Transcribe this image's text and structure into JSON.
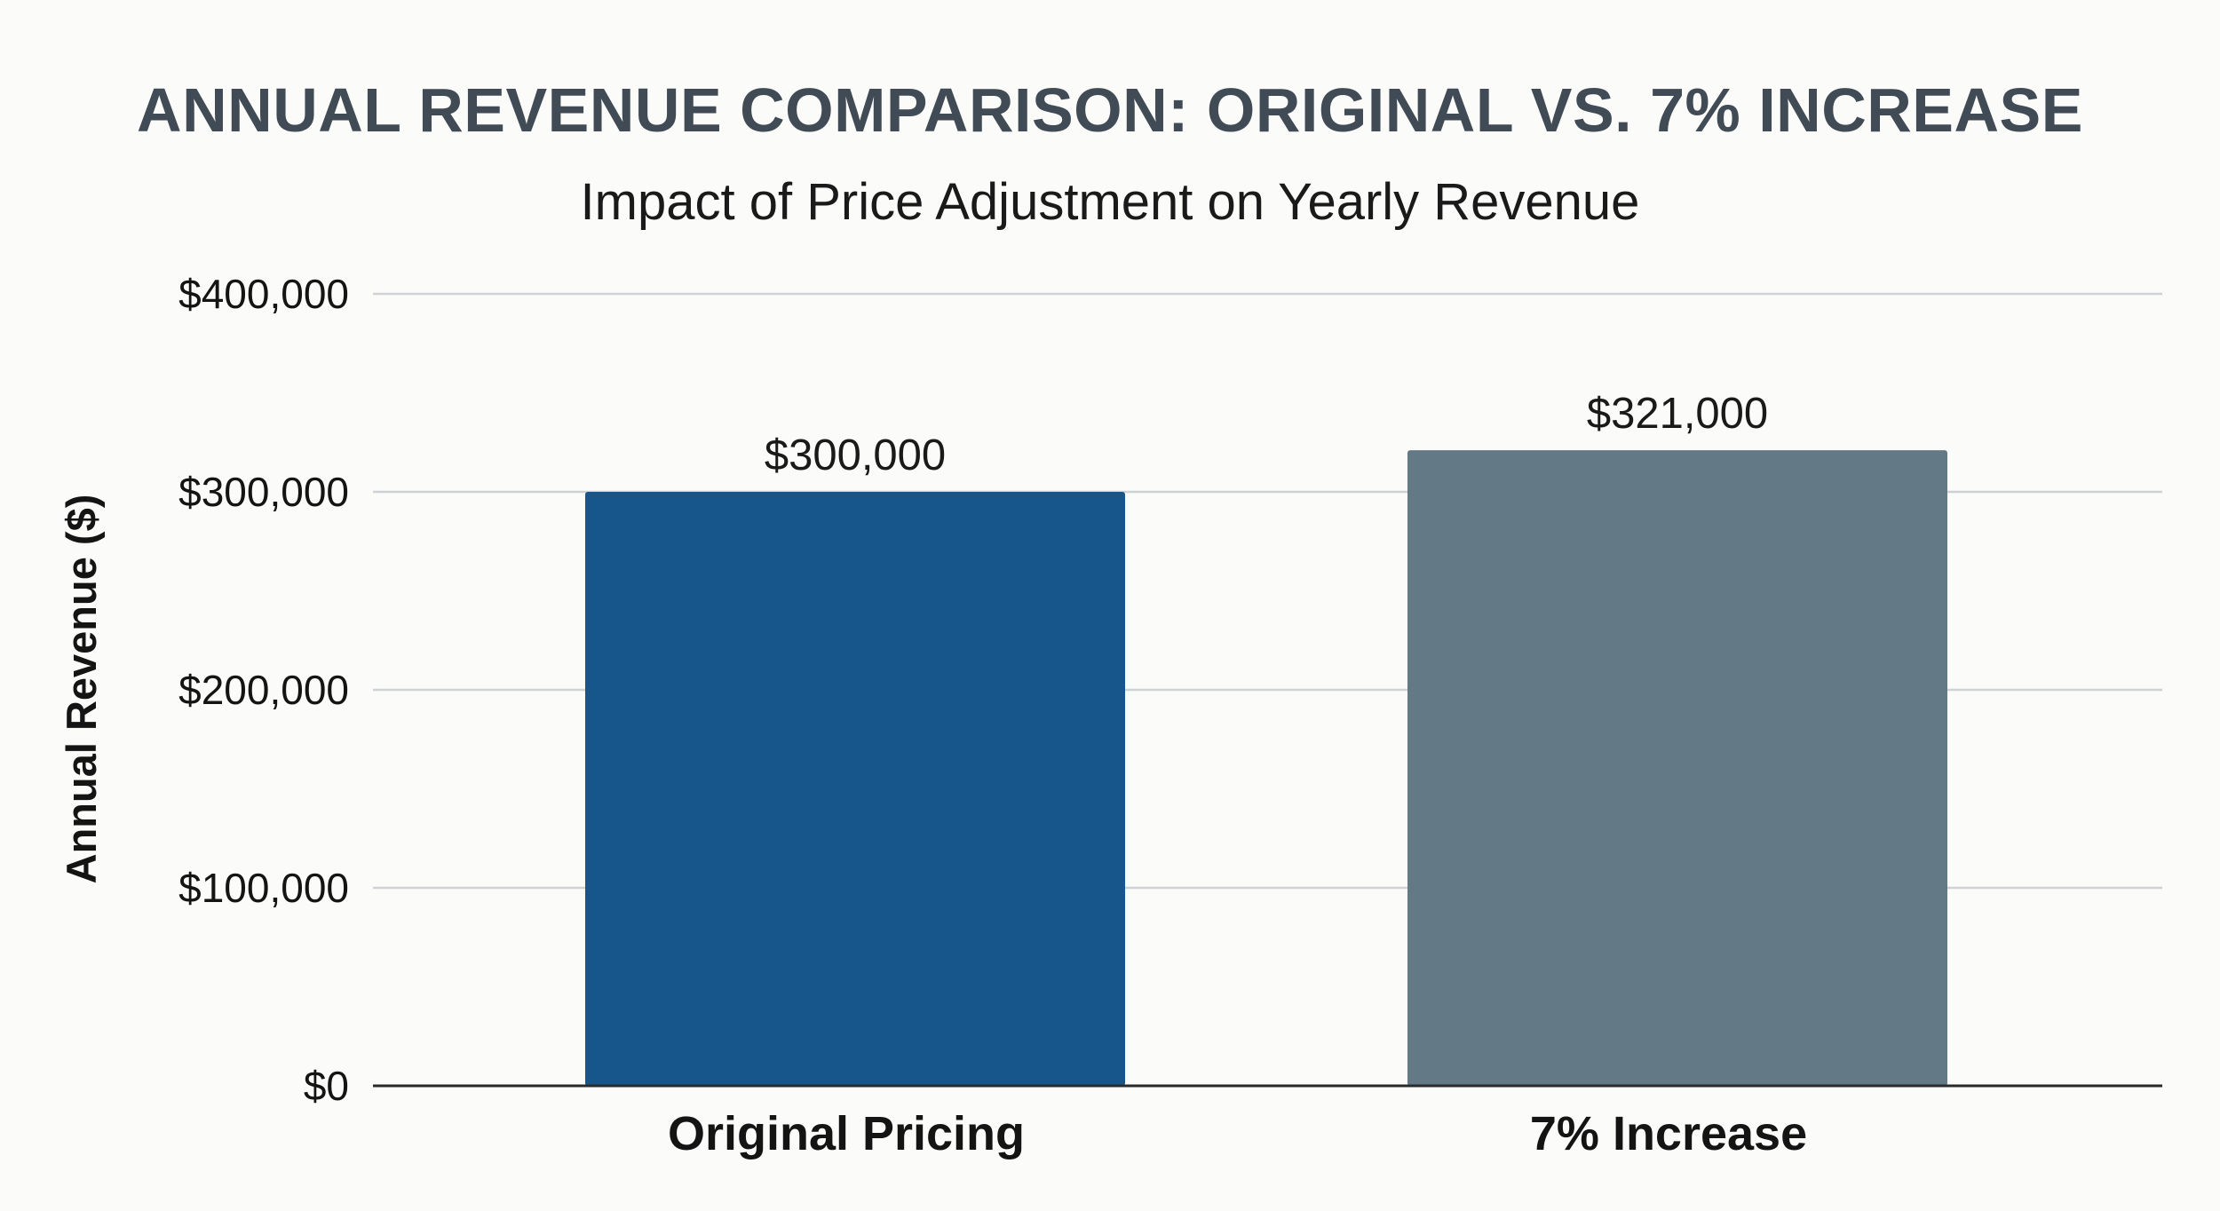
{
  "chart_data": {
    "type": "bar",
    "title": "ANNUAL REVENUE COMPARISON: ORIGINAL VS. 7% INCREASE",
    "subtitle": "Impact of Price Adjustment on Yearly Revenue",
    "xlabel": "",
    "ylabel": "Annual Revenue ($)",
    "categories": [
      "Original Pricing",
      "7% Increase"
    ],
    "values": [
      300000,
      321000
    ],
    "data_labels": [
      "$300,000",
      "$321,000"
    ],
    "bar_colors": [
      "#17568a",
      "#637986"
    ],
    "ylim": [
      0,
      400000
    ],
    "yticks": [
      0,
      100000,
      200000,
      300000,
      400000
    ],
    "ytick_labels": [
      "$0",
      "$100,000",
      "$200,000",
      "$300,000",
      "$400,000"
    ],
    "grid": true,
    "legend": "none"
  },
  "colors": {
    "background": "#fbfbf9",
    "title": "#414b56",
    "gridline": "#cfd2d4",
    "axis": "#2a2a2a"
  }
}
